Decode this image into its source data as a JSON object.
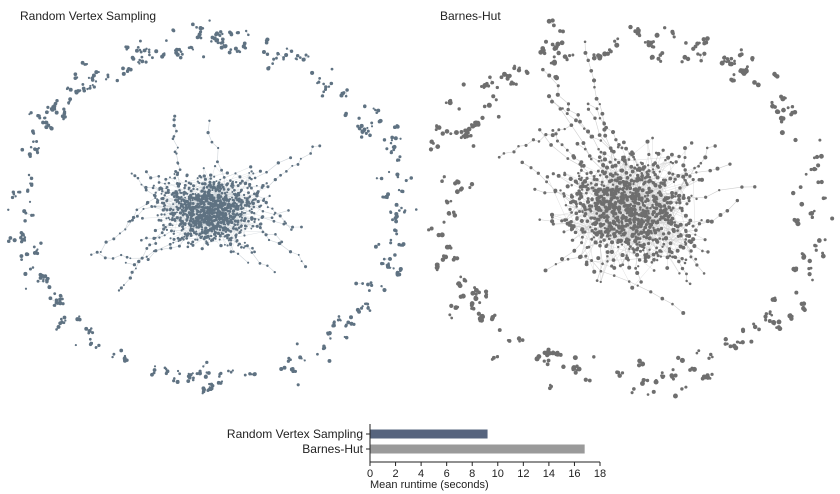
{
  "panels": [
    {
      "title": "Random Vertex Sampling",
      "node_color": "#5f7282",
      "edge_color": "#cfd5da"
    },
    {
      "title": "Barnes-Hut",
      "node_color": "#6e6e6e",
      "edge_color": "#cfcfcf"
    }
  ],
  "chart_data": {
    "type": "bar",
    "orientation": "horizontal",
    "categories": [
      "Random Vertex Sampling",
      "Barnes-Hut"
    ],
    "values": [
      9.2,
      16.8
    ],
    "colors": [
      "#56647e",
      "#9a9a9a"
    ],
    "xlabel": "Mean runtime (seconds)",
    "xlim": [
      0,
      18
    ],
    "xticks": [
      "0",
      "2",
      "4",
      "6",
      "8",
      "10",
      "12",
      "14",
      "16",
      "18"
    ],
    "grid": false
  }
}
